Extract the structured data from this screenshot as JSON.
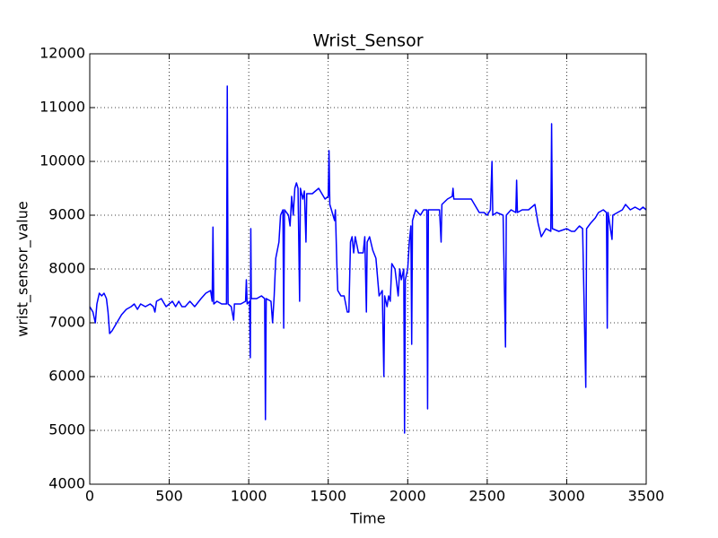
{
  "chart_data": {
    "type": "line",
    "title": "Wrist_Sensor",
    "x_label": "Time",
    "y_label": "wrist_sensor_value",
    "x": [
      0,
      20,
      35,
      45,
      60,
      75,
      90,
      105,
      115,
      125,
      140,
      160,
      180,
      200,
      230,
      260,
      280,
      300,
      320,
      350,
      380,
      400,
      410,
      420,
      450,
      480,
      500,
      520,
      540,
      560,
      580,
      600,
      630,
      660,
      700,
      730,
      760,
      770,
      775,
      780,
      800,
      830,
      860,
      865,
      870,
      890,
      905,
      910,
      950,
      980,
      985,
      990,
      1005,
      1010,
      1013,
      1016,
      1050,
      1080,
      1100,
      1105,
      1110,
      1140,
      1150,
      1160,
      1170,
      1190,
      1200,
      1215,
      1220,
      1225,
      1250,
      1260,
      1270,
      1280,
      1290,
      1300,
      1310,
      1320,
      1325,
      1340,
      1350,
      1360,
      1365,
      1400,
      1440,
      1480,
      1500,
      1505,
      1510,
      1530,
      1540,
      1545,
      1555,
      1560,
      1580,
      1600,
      1620,
      1630,
      1640,
      1650,
      1660,
      1670,
      1690,
      1720,
      1730,
      1740,
      1745,
      1760,
      1780,
      1800,
      1820,
      1840,
      1850,
      1855,
      1870,
      1880,
      1890,
      1900,
      1920,
      1940,
      1950,
      1960,
      1975,
      1980,
      1985,
      2000,
      2010,
      2020,
      2025,
      2030,
      2050,
      2080,
      2100,
      2120,
      2125,
      2130,
      2160,
      2200,
      2210,
      2215,
      2250,
      2280,
      2285,
      2290,
      2330,
      2370,
      2400,
      2420,
      2450,
      2480,
      2500,
      2520,
      2530,
      2535,
      2560,
      2600,
      2615,
      2620,
      2650,
      2680,
      2685,
      2690,
      2720,
      2760,
      2800,
      2820,
      2840,
      2870,
      2900,
      2905,
      2910,
      2950,
      3000,
      3030,
      3050,
      3080,
      3100,
      3120,
      3125,
      3150,
      3180,
      3200,
      3230,
      3250,
      3255,
      3260,
      3285,
      3290,
      3320,
      3350,
      3370,
      3400,
      3430,
      3460,
      3480,
      3500
    ],
    "series": [
      {
        "name": "wrist_sensor_value",
        "color": "#0000ff",
        "values": [
          7300,
          7200,
          7000,
          7350,
          7550,
          7500,
          7550,
          7450,
          7200,
          6800,
          6850,
          6950,
          7050,
          7150,
          7250,
          7300,
          7350,
          7250,
          7350,
          7300,
          7350,
          7300,
          7200,
          7400,
          7450,
          7300,
          7350,
          7400,
          7300,
          7400,
          7300,
          7300,
          7400,
          7300,
          7450,
          7550,
          7600,
          7400,
          8780,
          7350,
          7400,
          7350,
          7350,
          11400,
          7350,
          7300,
          7050,
          7350,
          7350,
          7400,
          7800,
          7350,
          7400,
          6350,
          8750,
          7450,
          7450,
          7500,
          7450,
          5200,
          7450,
          7400,
          7000,
          7500,
          8200,
          8500,
          9000,
          9100,
          6900,
          9100,
          9000,
          8800,
          9350,
          9000,
          9500,
          9600,
          9500,
          7400,
          9500,
          9300,
          9450,
          8500,
          9400,
          9400,
          9500,
          9300,
          9350,
          10200,
          9200,
          9000,
          8900,
          9100,
          8000,
          7600,
          7500,
          7500,
          7200,
          7200,
          8500,
          8600,
          8300,
          8600,
          8300,
          8300,
          8600,
          7200,
          8500,
          8600,
          8350,
          8200,
          7500,
          7600,
          6000,
          7500,
          7300,
          7500,
          7400,
          8100,
          8000,
          7500,
          8000,
          7800,
          8000,
          4950,
          7800,
          8000,
          8500,
          8800,
          6600,
          8900,
          9100,
          9000,
          9100,
          9100,
          5400,
          9100,
          9100,
          9100,
          8500,
          9200,
          9300,
          9350,
          9500,
          9300,
          9300,
          9300,
          9300,
          9200,
          9050,
          9050,
          9000,
          9100,
          10000,
          9000,
          9050,
          9000,
          6550,
          9000,
          9100,
          9050,
          9650,
          9050,
          9100,
          9100,
          9200,
          8850,
          8600,
          8750,
          8700,
          10700,
          8750,
          8700,
          8750,
          8700,
          8700,
          8800,
          8750,
          5800,
          8750,
          8850,
          8950,
          9050,
          9100,
          9050,
          6900,
          9050,
          8550,
          9000,
          9050,
          9100,
          9200,
          9100,
          9150,
          9100,
          9150,
          9100
        ]
      }
    ],
    "xlim": [
      0,
      3500
    ],
    "xticks": [
      0,
      500,
      1000,
      1500,
      2000,
      2500,
      3000,
      3500
    ],
    "ylim": [
      4000,
      12000
    ],
    "yticks": [
      4000,
      5000,
      6000,
      7000,
      8000,
      9000,
      10000,
      11000,
      12000
    ],
    "grid": true
  }
}
